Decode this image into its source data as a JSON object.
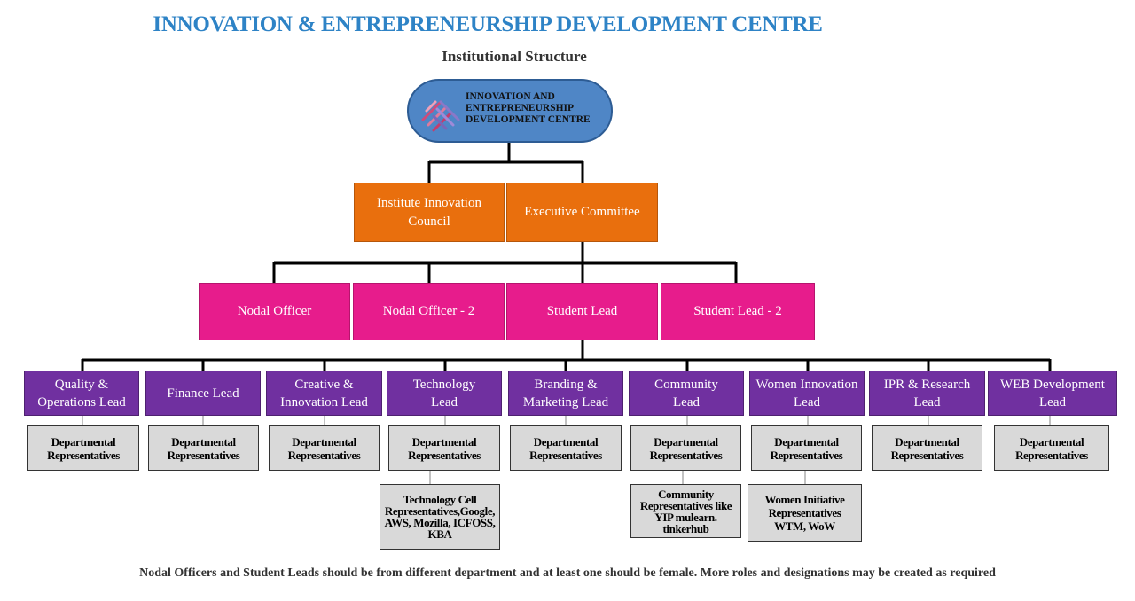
{
  "header": {
    "title": "INNOVATION & ENTREPRENEURSHIP DEVELOPMENT CENTRE",
    "subtitle": "Institutional Structure"
  },
  "root": {
    "line1": "INNOVATION AND",
    "line2": "ENTREPRENEURSHIP",
    "line3": "DEVELOPMENT CENTRE"
  },
  "committees": [
    {
      "label": "Institute Innovation Council"
    },
    {
      "label": "Executive Committee"
    }
  ],
  "officers": [
    {
      "label": "Nodal Officer"
    },
    {
      "label": "Nodal Officer - 2"
    },
    {
      "label": "Student Lead"
    },
    {
      "label": "Student Lead - 2"
    }
  ],
  "leads": [
    {
      "label": "Quality & Operations Lead",
      "rep": "Departmental Representatives"
    },
    {
      "label": "Finance Lead",
      "rep": "Departmental Representatives"
    },
    {
      "label": "Creative & Innovation Lead",
      "rep": "Departmental Representatives"
    },
    {
      "label": "Technology Lead",
      "rep": "Departmental Representatives"
    },
    {
      "label": "Branding & Marketing Lead",
      "rep": "Departmental Representatives"
    },
    {
      "label": "Community Lead",
      "rep": "Departmental Representatives"
    },
    {
      "label": "Women Innovation Lead",
      "rep": "Departmental Representatives"
    },
    {
      "label": "IPR & Research Lead",
      "rep": "Departmental Representatives"
    },
    {
      "label": "WEB Development Lead",
      "rep": "Departmental Representatives"
    }
  ],
  "sub_groups": [
    {
      "label": "Technology Cell Representatives,Google, AWS, Mozilla, ICFOSS, KBA"
    },
    {
      "label": "Community Representatives like YIP mulearn. tinkerhub"
    },
    {
      "label": "Women Initiative Representatives WTM, WoW"
    }
  ],
  "footnote": "Nodal Officers and Student Leads should be from different department and at least one should be female. More roles and designations may be created as required",
  "colors": {
    "title": "#2e83c6",
    "root_fill": "#4f86c6",
    "committee_fill": "#e96f0d",
    "officer_fill": "#e71c8c",
    "lead_fill": "#7030a0",
    "representative_fill": "#d9d9d9"
  }
}
